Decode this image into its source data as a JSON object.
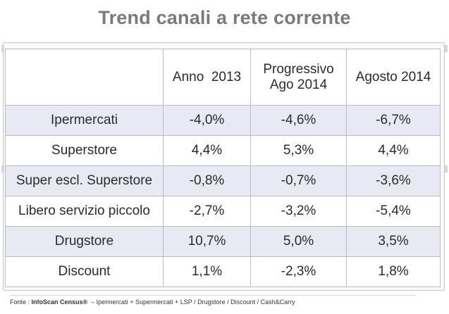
{
  "title": "Trend canali a rete corrente",
  "chart_data": {
    "type": "table",
    "title": "Trend canali a rete corrente",
    "columns": [
      "Anno  2013",
      "Progressivo Ago 2014",
      "Agosto 2014"
    ],
    "columns_display": [
      [
        "Anno  2013"
      ],
      [
        "Progressivo",
        "Ago 2014"
      ],
      [
        "Agosto 2014"
      ]
    ],
    "rows": [
      {
        "label": "Ipermercati",
        "values": [
          "-4,0%",
          "-4,6%",
          "-6,7%"
        ],
        "numeric": [
          -4.0,
          -4.6,
          -6.7
        ]
      },
      {
        "label": "Superstore",
        "values": [
          "4,4%",
          "5,3%",
          "4,4%"
        ],
        "numeric": [
          4.4,
          5.3,
          4.4
        ]
      },
      {
        "label": "Super escl. Superstore",
        "values": [
          "-0,8%",
          "-0,7%",
          "-3,6%"
        ],
        "numeric": [
          -0.8,
          -0.7,
          -3.6
        ]
      },
      {
        "label": "Libero servizio piccolo",
        "values": [
          "-2,7%",
          "-3,2%",
          "-5,4%"
        ],
        "numeric": [
          -2.7,
          -3.2,
          -5.4
        ]
      },
      {
        "label": "Drugstore",
        "values": [
          "10,7%",
          "5,0%",
          "3,5%"
        ],
        "numeric": [
          10.7,
          5.0,
          3.5
        ]
      },
      {
        "label": "Discount",
        "values": [
          "1,1%",
          "-2,3%",
          "1,8%"
        ],
        "numeric": [
          1.1,
          -2.3,
          1.8
        ]
      }
    ],
    "negative_color": "#d00000",
    "positive_color": "#2b2b2b",
    "shaded_row_color": "#e7eaf3"
  },
  "source": {
    "prefix": "Fonte : ",
    "name": "InfoScan Census®",
    "detail": "  – Ipermercati + Supermercati + LSP / Drugstore / Discount / Cash&Carry"
  }
}
